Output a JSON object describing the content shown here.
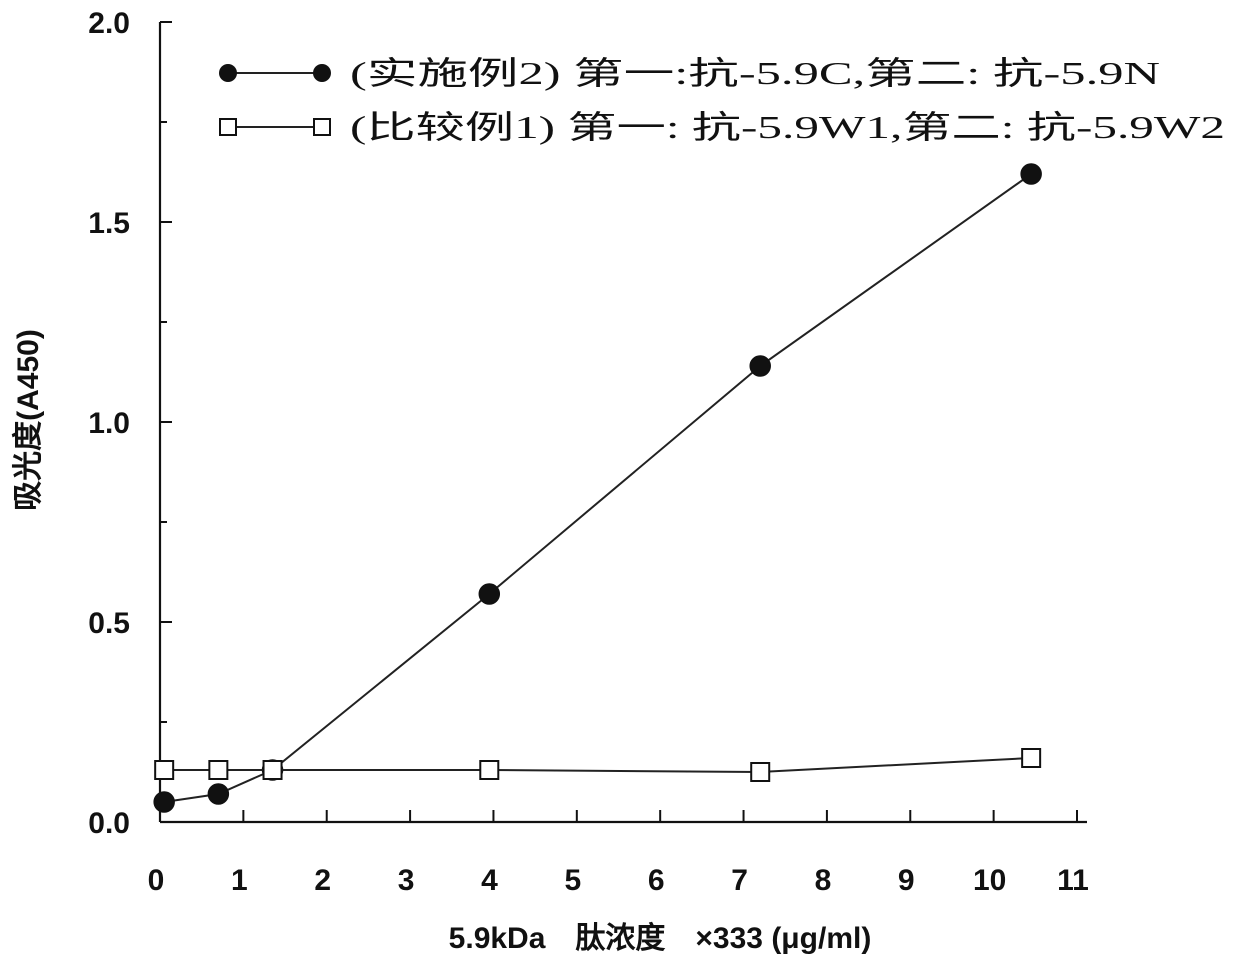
{
  "chart_data": {
    "type": "line",
    "xlabel": "5.9kDa　肽浓度　×333 (μg/ml)",
    "ylabel": "吸光度(A450)",
    "xlim": [
      0,
      11
    ],
    "ylim": [
      0,
      2.0
    ],
    "x_ticks": [
      "0",
      "1",
      "2",
      "3",
      "4",
      "5",
      "6",
      "7",
      "8",
      "9",
      "10",
      "11"
    ],
    "y_ticks": [
      "0.0",
      "0.5",
      "1.0",
      "1.5",
      "2.0"
    ],
    "grid": false,
    "legend_position": "top",
    "series": [
      {
        "name": "(实施例2) 第一:抗-5.9C,第二: 抗-5.9N",
        "marker": "filled-circle",
        "color": "#111111",
        "x": [
          0.05,
          0.7,
          1.35,
          3.95,
          7.2,
          10.45
        ],
        "y": [
          0.05,
          0.07,
          0.13,
          0.57,
          1.14,
          1.62
        ]
      },
      {
        "name": "(比较例1) 第一: 抗-5.9W1,第二: 抗-5.9W2",
        "marker": "open-square",
        "color": "#111111",
        "x": [
          0.05,
          0.7,
          1.35,
          3.95,
          7.2,
          10.45
        ],
        "y": [
          0.13,
          0.13,
          0.13,
          0.13,
          0.125,
          0.16
        ]
      }
    ]
  }
}
